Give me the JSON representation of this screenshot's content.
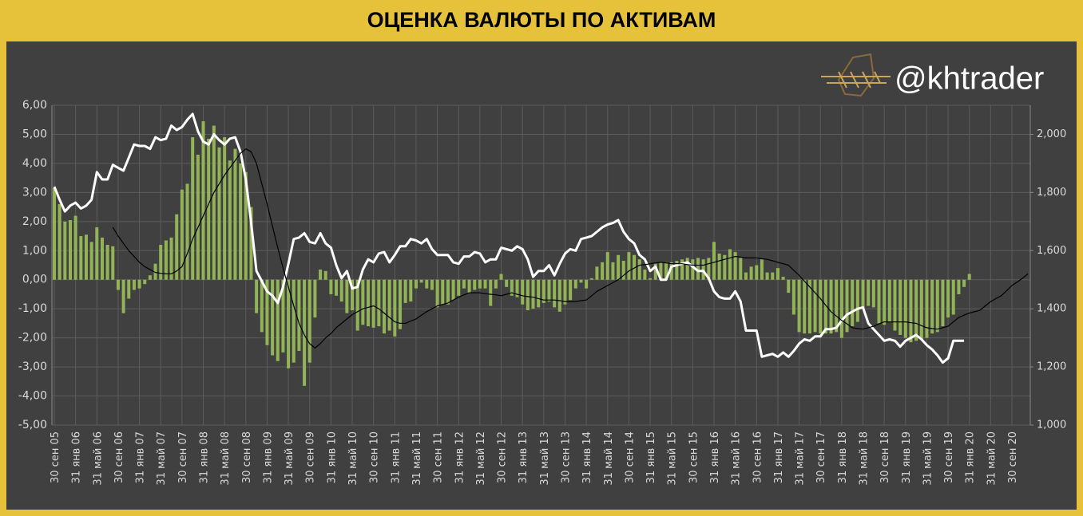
{
  "chart_data": {
    "type": "bar_line",
    "title": "ОЦЕНКА ВАЛЮТЫ ПО АКТИВАМ",
    "watermark": "@khtrader",
    "grid": true,
    "categories": [
      "30 сен 05",
      null,
      null,
      null,
      "31 янв 06",
      null,
      null,
      null,
      "31 май 06",
      null,
      null,
      null,
      "30 сен 06",
      null,
      null,
      null,
      "31 янв 07",
      null,
      null,
      null,
      "31 май 07",
      null,
      null,
      null,
      "30 сен 07",
      null,
      null,
      null,
      "31 янв 08",
      null,
      null,
      null,
      "31 май 08",
      null,
      null,
      null,
      "30 сен 08",
      null,
      null,
      null,
      "31 янв 09",
      null,
      null,
      null,
      "31 май 09",
      null,
      null,
      null,
      "30 сен 09",
      null,
      null,
      null,
      "31 янв 10",
      null,
      null,
      null,
      "31 май 10",
      null,
      null,
      null,
      "30 сен 10",
      null,
      null,
      null,
      "31 янв 11",
      null,
      null,
      null,
      "31 май 11",
      null,
      null,
      null,
      "30 сен 11",
      null,
      null,
      null,
      "31 янв 12",
      null,
      null,
      null,
      "31 май 12",
      null,
      null,
      null,
      "30 сен 12",
      null,
      null,
      null,
      "31 янв 13",
      null,
      null,
      null,
      "31 май 13",
      null,
      null,
      null,
      "30 сен 13",
      null,
      null,
      null,
      "31 янв 14",
      null,
      null,
      null,
      "31 май 14",
      null,
      null,
      null,
      "30 сен 14",
      null,
      null,
      null,
      "31 янв 15",
      null,
      null,
      null,
      "31 май 15",
      null,
      null,
      null,
      "30 сен 15",
      null,
      null,
      null,
      "31 янв 16",
      null,
      null,
      null,
      "31 май 16",
      null,
      null,
      null,
      "30 сен 16",
      null,
      null,
      null,
      "31 янв 17",
      null,
      null,
      null,
      "31 май 17",
      null,
      null,
      null,
      "30 сен 17",
      null,
      null,
      null,
      "31 янв 18",
      null,
      null,
      null,
      "31 май 18",
      null,
      null,
      null,
      "30 сен 18",
      null,
      null,
      null,
      "31 янв 19",
      null,
      null,
      null,
      "31 май 19",
      null,
      null,
      null,
      "30 сен 19",
      null,
      null,
      null,
      "31 янв 20",
      null,
      null,
      null,
      "31 май 20",
      null,
      null,
      null,
      "30 сен 20",
      null,
      null,
      null
    ],
    "ylim": [
      -5,
      6
    ],
    "yticks": [
      {
        "value": -5,
        "label": "-5,00"
      },
      {
        "value": -4,
        "label": "-4,00"
      },
      {
        "value": -3,
        "label": "-3,00"
      },
      {
        "value": -2,
        "label": "-2,00"
      },
      {
        "value": -1,
        "label": "-1,00"
      },
      {
        "value": 0,
        "label": "0,00"
      },
      {
        "value": 1,
        "label": "1,00"
      },
      {
        "value": 2,
        "label": "2,00"
      },
      {
        "value": 3,
        "label": "3,00"
      },
      {
        "value": 4,
        "label": "4,00"
      },
      {
        "value": 5,
        "label": "5,00"
      },
      {
        "value": 6,
        "label": "6,00"
      }
    ],
    "y2lim": [
      1000,
      2100
    ],
    "y2ticks": [
      {
        "value": 1000,
        "label": "1,000"
      },
      {
        "value": 1200,
        "label": "1,200"
      },
      {
        "value": 1400,
        "label": "1,400"
      },
      {
        "value": 1600,
        "label": "1,600"
      },
      {
        "value": 1800,
        "label": "1,800"
      },
      {
        "value": 2000,
        "label": "2,000"
      }
    ],
    "series": [
      {
        "type": "bar",
        "color": "#92b457",
        "values": [
          3.15,
          2.6,
          2.0,
          2.05,
          2.2,
          1.5,
          1.55,
          1.3,
          1.8,
          1.45,
          1.2,
          1.15,
          -0.35,
          -1.15,
          -0.65,
          -0.35,
          -0.3,
          -0.15,
          0.15,
          0.55,
          1.2,
          1.35,
          1.45,
          2.25,
          3.1,
          3.3,
          4.9,
          4.3,
          5.45,
          4.85,
          5.3,
          4.55,
          4.9,
          4.1,
          4.5,
          4.0,
          3.7,
          2.5,
          -1.15,
          -1.8,
          -2.25,
          -2.6,
          -2.8,
          -2.5,
          -3.05,
          -2.85,
          -2.45,
          -3.65,
          -2.85,
          -1.3,
          0.35,
          0.3,
          -0.5,
          -0.55,
          -0.75,
          -1.15,
          -1.05,
          -1.75,
          -1.55,
          -1.6,
          -1.65,
          -1.6,
          -1.85,
          -1.75,
          -1.95,
          -1.7,
          -0.8,
          -0.75,
          -0.3,
          -0.1,
          -0.3,
          -0.35,
          -0.95,
          -0.85,
          -0.85,
          -0.7,
          -0.55,
          -0.3,
          -0.45,
          -0.35,
          -0.3,
          -0.3,
          -0.9,
          -0.3,
          0.2,
          -0.25,
          -0.55,
          -0.6,
          -0.85,
          -1.05,
          -1.0,
          -0.95,
          -0.8,
          -0.75,
          -0.95,
          -1.1,
          -0.85,
          -0.7,
          -0.3,
          -0.1,
          -0.3,
          0.05,
          0.45,
          0.6,
          0.95,
          0.6,
          0.85,
          0.65,
          0.95,
          0.85,
          0.7,
          0.35,
          0.05,
          0.55,
          0.6,
          0.6,
          0.6,
          0.65,
          0.7,
          0.75,
          0.7,
          0.75,
          0.7,
          0.75,
          1.3,
          0.9,
          0.85,
          1.05,
          0.95,
          0.75,
          0.25,
          0.45,
          0.5,
          0.7,
          0.25,
          0.25,
          0.4,
          0.1,
          -0.45,
          -1.2,
          -1.8,
          -1.85,
          -1.85,
          -1.8,
          -1.85,
          -1.85,
          -1.85,
          -1.8,
          -2.0,
          -1.8,
          -1.6,
          -1.45,
          -1.0,
          -0.9,
          -0.95,
          -1.5,
          -1.55,
          -1.45,
          -1.75,
          -1.9,
          -2.0,
          -2.15,
          -2.1,
          -2.05,
          -2.0,
          -1.85,
          -1.8,
          -1.6,
          -1.3,
          -1.2,
          -0.5,
          -0.25,
          0.2,
          null,
          null,
          null,
          null,
          null,
          null,
          null,
          null,
          null,
          null,
          null
        ]
      },
      {
        "type": "line",
        "axis": "y2",
        "color": "#ffffff",
        "values": [
          1820,
          1775,
          1735,
          1755,
          1765,
          1745,
          1755,
          1775,
          1870,
          1845,
          1845,
          1895,
          1885,
          1875,
          1920,
          1965,
          1960,
          1960,
          1950,
          1990,
          1980,
          1985,
          2030,
          2015,
          2025,
          2050,
          2070,
          2010,
          1975,
          1965,
          2000,
          1980,
          1965,
          1985,
          1990,
          1940,
          1845,
          1695,
          1530,
          1495,
          1460,
          1445,
          1420,
          1475,
          1555,
          1640,
          1645,
          1660,
          1630,
          1625,
          1660,
          1625,
          1610,
          1550,
          1505,
          1530,
          1470,
          1475,
          1535,
          1570,
          1560,
          1590,
          1595,
          1560,
          1585,
          1615,
          1615,
          1640,
          1635,
          1625,
          1640,
          1605,
          1585,
          1585,
          1585,
          1560,
          1555,
          1580,
          1580,
          1595,
          1590,
          1560,
          1570,
          1570,
          1610,
          1605,
          1600,
          1615,
          1605,
          1570,
          1510,
          1530,
          1530,
          1550,
          1515,
          1555,
          1590,
          1605,
          1600,
          1640,
          1645,
          1650,
          1665,
          1680,
          1690,
          1695,
          1705,
          1665,
          1640,
          1625,
          1585,
          1570,
          1530,
          1545,
          1500,
          1500,
          1545,
          1550,
          1555,
          1560,
          1545,
          1530,
          1530,
          1505,
          1460,
          1440,
          1435,
          1435,
          1460,
          1425,
          1325,
          1325,
          1325,
          1235,
          1240,
          1245,
          1235,
          1250,
          1235,
          1255,
          1280,
          1295,
          1290,
          1305,
          1305,
          1330,
          1330,
          1335,
          1360,
          1380,
          1390,
          1400,
          1405,
          1350,
          1330,
          1310,
          1290,
          1295,
          1290,
          1270,
          1290,
          1300,
          1310,
          1295,
          1275,
          1260,
          1240,
          1215,
          1230,
          1290,
          1290,
          1290,
          null,
          null,
          null,
          null,
          null,
          null,
          null,
          null,
          null,
          null,
          null,
          null
        ]
      },
      {
        "type": "line",
        "axis": "y2",
        "color": "#000000",
        "values": [
          null,
          null,
          null,
          null,
          null,
          null,
          null,
          null,
          null,
          null,
          null,
          1680,
          1650,
          1625,
          1600,
          1580,
          1560,
          1545,
          1535,
          1525,
          1522,
          1520,
          1520,
          1530,
          1545,
          1590,
          1640,
          1680,
          1720,
          1760,
          1800,
          1830,
          1860,
          1885,
          1910,
          1935,
          1950,
          1940,
          1900,
          1830,
          1760,
          1685,
          1610,
          1540,
          1475,
          1410,
          1350,
          1310,
          1280,
          1265,
          1280,
          1300,
          1315,
          1335,
          1350,
          1365,
          1380,
          1390,
          1400,
          1405,
          1410,
          1400,
          1385,
          1370,
          1355,
          1350,
          1350,
          1358,
          1365,
          1378,
          1390,
          1400,
          1410,
          1415,
          1420,
          1430,
          1440,
          1448,
          1455,
          1455,
          1455,
          1452,
          1450,
          1448,
          1445,
          1450,
          1455,
          1450,
          1445,
          1442,
          1440,
          1435,
          1430,
          1430,
          1430,
          1428,
          1425,
          1425,
          1425,
          1428,
          1430,
          1445,
          1460,
          1470,
          1480,
          1490,
          1500,
          1515,
          1530,
          1540,
          1550,
          1552,
          1555,
          1558,
          1560,
          1558,
          1555,
          1555,
          1555,
          1552,
          1550,
          1550,
          1550,
          1555,
          1560,
          1565,
          1570,
          1575,
          1580,
          1578,
          1575,
          1575,
          1575,
          1572,
          1570,
          1565,
          1560,
          1555,
          1550,
          1532,
          1515,
          1495,
          1475,
          1455,
          1435,
          1412,
          1390,
          1375,
          1360,
          1348,
          1335,
          1332,
          1330,
          1335,
          1340,
          1348,
          1355,
          1355,
          1355,
          1355,
          1355,
          1352,
          1350,
          1342,
          1335,
          1332,
          1330,
          1335,
          1340,
          1355,
          1370,
          1378,
          1385,
          1390,
          1395,
          1410,
          1425,
          1435,
          1445,
          1462,
          1480,
          1492,
          1505,
          1520
        ]
      }
    ]
  }
}
